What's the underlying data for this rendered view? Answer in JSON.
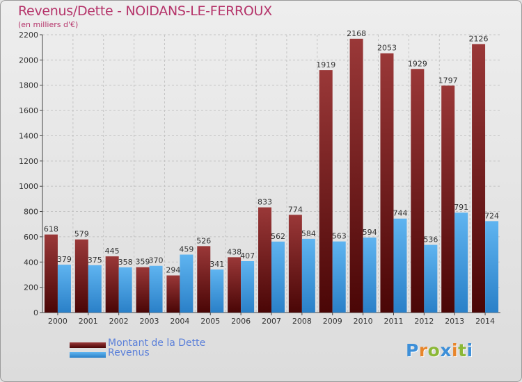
{
  "header": {
    "title": "Revenus/Dette - NOIDANS-LE-FERROUX",
    "subtitle": "(en milliers d'€)"
  },
  "chart_data": {
    "type": "bar",
    "categories": [
      "2000",
      "2001",
      "2002",
      "2003",
      "2004",
      "2005",
      "2006",
      "2007",
      "2008",
      "2009",
      "2010",
      "2011",
      "2012",
      "2013",
      "2014"
    ],
    "series": [
      {
        "name": "Montant de la Dette",
        "color": "#7a1a1a",
        "values": [
          618,
          579,
          445,
          359,
          294,
          526,
          438,
          833,
          774,
          1919,
          2168,
          2053,
          1929,
          1797,
          2126
        ]
      },
      {
        "name": "Revenus",
        "color": "#3d9be0",
        "values": [
          379,
          375,
          358,
          370,
          459,
          341,
          407,
          562,
          584,
          563,
          594,
          744,
          536,
          791,
          724
        ]
      }
    ],
    "ylim": [
      0,
      2200
    ],
    "yticks": [
      0,
      200,
      400,
      600,
      800,
      1000,
      1200,
      1400,
      1600,
      1800,
      2000,
      2200
    ],
    "grid": true,
    "legend": "bottom-left"
  },
  "logo": {
    "letters": [
      "P",
      "r",
      "o",
      "x",
      "i",
      "t",
      "i"
    ],
    "colors": [
      "#3d8fd8",
      "#e8852a",
      "#8bb836",
      "#3d8fd8",
      "#e8852a",
      "#8bb836",
      "#3d8fd8"
    ]
  }
}
